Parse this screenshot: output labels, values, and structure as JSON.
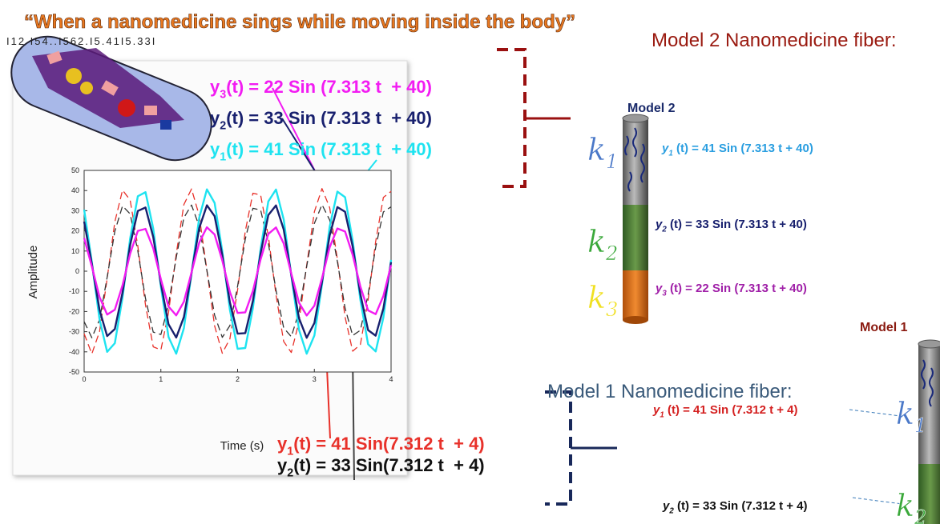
{
  "header": {
    "title": "“When a nanomedicine sings while moving inside the body”",
    "code": "I12 I54..I562.I5.41I5.33I"
  },
  "chart_data": {
    "type": "line",
    "xlabel": "Time (s)",
    "ylabel": "Amplitude",
    "x": [
      0,
      0.1,
      0.2,
      0.3,
      0.4,
      0.5,
      0.6,
      0.7,
      0.8,
      0.9,
      1,
      1.1,
      1.2,
      1.3,
      1.4,
      1.5,
      1.6,
      1.7,
      1.8,
      1.9,
      2,
      2.1,
      2.2,
      2.3,
      2.4,
      2.5,
      2.6,
      2.7,
      2.8,
      2.9,
      3,
      3.1,
      3.2,
      3.3,
      3.4,
      3.5,
      3.6,
      3.7,
      3.8,
      3.9,
      4
    ],
    "series": [
      {
        "color": "#e8312a",
        "dash": true,
        "values": [
          -31.0,
          -41.0,
          -30.0,
          -3.7,
          24.5,
          40.2,
          35.3,
          12.4,
          -16.9,
          -37.5,
          -39.0,
          -20.5,
          8.5,
          33.1,
          40.8,
          27.6,
          0.4,
          -27.1,
          -40.7,
          -33.5,
          -9.2,
          19.9,
          38.7,
          37.8,
          17.6,
          -11.7,
          -34.9,
          -40.3,
          -25.1,
          2.9,
          29.5,
          41.0,
          31.5,
          5.9,
          -22.7,
          -39.7,
          -36.4,
          -14.5,
          14.8,
          36.6,
          39.6
        ]
      },
      {
        "color": "#333333",
        "dash": true,
        "values": [
          -25.0,
          -33.0,
          -24.1,
          -3.0,
          19.8,
          32.4,
          28.4,
          10.0,
          -13.6,
          -30.2,
          -31.4,
          -16.5,
          6.8,
          26.6,
          32.8,
          22.3,
          0.3,
          -21.8,
          -32.8,
          -27.0,
          -7.4,
          16.0,
          31.2,
          30.4,
          14.1,
          -9.4,
          -28.1,
          -32.5,
          -20.2,
          2.4,
          23.7,
          33.0,
          25.4,
          4.8,
          -18.3,
          -31.9,
          -29.3,
          -11.7,
          11.9,
          29.4,
          31.9
        ]
      },
      {
        "color": "#1ee3f0",
        "dash": false,
        "values": [
          30.5,
          4.5,
          -23.9,
          -40.0,
          -35.7,
          -13.1,
          16.2,
          37.2,
          39.2,
          21.2,
          -7.7,
          -32.6,
          -40.9,
          -28.2,
          -1.1,
          26.5,
          40.6,
          33.9,
          9.9,
          -19.2,
          -38.5,
          -38.1,
          -18.2,
          11.0,
          34.6,
          40.5,
          25.7,
          -2.2,
          -29.0,
          -40.9,
          -31.9,
          -6.6,
          22.1,
          39.5,
          36.7,
          15.1,
          -14.2,
          -36.2,
          -39.8,
          -23.0,
          5.6
        ]
      },
      {
        "color": "#18206e",
        "dash": false,
        "values": [
          24.6,
          3.6,
          -19.2,
          -32.2,
          -28.7,
          -10.6,
          13.0,
          29.9,
          31.6,
          17.0,
          -6.2,
          -26.3,
          -32.9,
          -22.7,
          -0.9,
          21.4,
          32.7,
          27.3,
          8.0,
          -15.5,
          -31.0,
          -30.7,
          -14.7,
          8.8,
          27.8,
          32.6,
          20.7,
          -1.8,
          -23.3,
          -33.0,
          -25.7,
          -5.3,
          17.8,
          31.8,
          29.5,
          12.2,
          -11.4,
          -29.2,
          -32.0,
          -18.5,
          4.5
        ]
      },
      {
        "color": "#f21cf2",
        "dash": false,
        "values": [
          16.4,
          2.4,
          -12.8,
          -21.5,
          -19.1,
          -7.0,
          8.7,
          20.0,
          21.0,
          11.4,
          -4.1,
          -17.5,
          -21.9,
          -15.1,
          -0.6,
          14.2,
          21.8,
          18.2,
          5.3,
          -10.3,
          -20.7,
          -20.4,
          -9.8,
          5.9,
          18.5,
          21.7,
          13.8,
          -1.2,
          -15.6,
          -22.0,
          -17.1,
          -3.5,
          11.9,
          21.2,
          19.7,
          8.1,
          -7.6,
          -19.4,
          -21.3,
          -12.3,
          3.0
        ]
      }
    ],
    "xlim": [
      0,
      4
    ],
    "ylim": [
      -50,
      50
    ],
    "xticks": [
      0,
      1,
      2,
      3,
      4
    ],
    "yticks": [
      -50,
      -40,
      -30,
      -20,
      -10,
      0,
      10,
      20,
      30,
      40,
      50
    ]
  },
  "plot_equations": {
    "model2": [
      {
        "y": "y",
        "sub": "3",
        "text": "(t) = 22 Sin (7.313 t  + 40)",
        "color": "#f21cf2"
      },
      {
        "y": "y",
        "sub": "2",
        "text": "(t) = 33 Sin (7.313 t  + 40)",
        "color": "#18206e"
      },
      {
        "y": "y",
        "sub": "1",
        "text": "(t) = 41 Sin (7.313 t  + 40)",
        "color": "#1ee3f0"
      }
    ],
    "model1": [
      {
        "y": "y",
        "sub": "1",
        "text": "(t) = 41 Sin(7.312 t  + 4)",
        "color": "#e8312a"
      },
      {
        "y": "y",
        "sub": "2",
        "text": "(t) = 33 Sin(7.312 t  + 4)",
        "color": "#111111"
      }
    ]
  },
  "model2": {
    "heading": "Model 2 Nanomedicine fiber:",
    "label": "Model 2",
    "k": [
      {
        "k": "k",
        "sub": "1",
        "color": "#4a78c8"
      },
      {
        "k": "k",
        "sub": "2",
        "color": "#3aa83a"
      },
      {
        "k": "k",
        "sub": "3",
        "color": "#f0e020"
      }
    ],
    "equations": [
      {
        "y": "y",
        "sub": "1",
        "text": " (t) = 41 Sin (7.313 t + 40)",
        "color": "#2a9ee0"
      },
      {
        "y": "y",
        "sub": "2",
        "text": " (t) = 33 Sin (7.313 t + 40)",
        "color": "#18206e"
      },
      {
        "y": "y",
        "sub": "3",
        "text": " (t) = 22 Sin (7.313 t + 40)",
        "color": "#a020a8"
      }
    ]
  },
  "model1": {
    "heading": "Model 1 Nanomedicine fiber:",
    "label": "Model 1",
    "k": [
      {
        "k": "k",
        "sub": "1",
        "color": "#4a78c8"
      },
      {
        "k": "k",
        "sub": "2",
        "color": "#3aa83a"
      }
    ],
    "equations": [
      {
        "y": "y",
        "sub": "1",
        "text": " (t) = 41 Sin (7.312 t + 4)",
        "color": "#d42020"
      },
      {
        "y": "y",
        "sub": "2",
        "text": " (t) = 33 Sin (7.312 t + 4)",
        "color": "#111111"
      }
    ]
  }
}
